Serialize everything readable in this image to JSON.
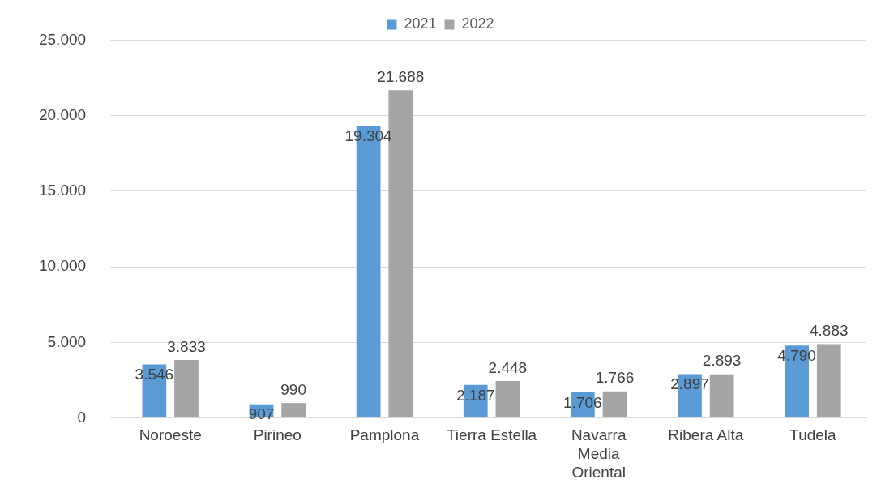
{
  "chart_data": {
    "type": "bar",
    "categories": [
      "Noroeste",
      "Pirineo",
      "Pamplona",
      "Tierra Estella",
      "Navarra Media Oriental",
      "Ribera Alta",
      "Tudela"
    ],
    "series": [
      {
        "name": "2021",
        "color": "#5b9bd5",
        "values": [
          3546,
          907,
          19304,
          2187,
          1706,
          2897,
          4790
        ],
        "value_labels": [
          "3.546",
          "907",
          "19.304",
          "2.187",
          "1.706",
          "2.897",
          "4.790"
        ]
      },
      {
        "name": "2022",
        "color": "#a5a5a5",
        "values": [
          3833,
          990,
          21688,
          2448,
          1766,
          2893,
          4883
        ],
        "value_labels": [
          "3.833",
          "990",
          "21.688",
          "2.448",
          "1.766",
          "2.893",
          "4.883"
        ]
      }
    ],
    "ylim": [
      0,
      25000
    ],
    "yticks": [
      {
        "value": 0,
        "label": "0"
      },
      {
        "value": 5000,
        "label": "5.000"
      },
      {
        "value": 10000,
        "label": "10.000"
      },
      {
        "value": 15000,
        "label": "15.000"
      },
      {
        "value": 20000,
        "label": "20.000"
      },
      {
        "value": 25000,
        "label": "25.000"
      }
    ],
    "grid": "y",
    "legend": "top"
  }
}
